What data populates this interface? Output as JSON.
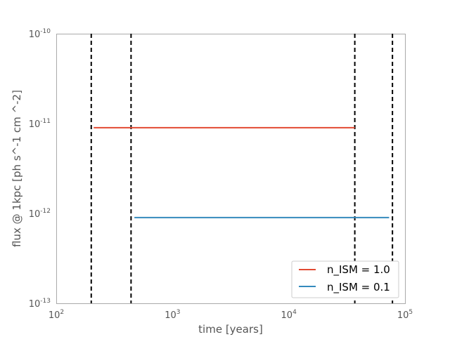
{
  "chart_data": {
    "type": "line",
    "title": "",
    "xlabel": "time [years]",
    "ylabel": "flux @ 1kpc [ph s^-1 cm ^-2]",
    "xscale": "log",
    "yscale": "log",
    "xlim": [
      100,
      100000
    ],
    "ylim": [
      1e-13,
      1e-10
    ],
    "grid": false,
    "legend": "lower-right",
    "x_ticks": [
      {
        "base": "10",
        "exp": "2",
        "value": 100
      },
      {
        "base": "10",
        "exp": "3",
        "value": 1000
      },
      {
        "base": "10",
        "exp": "4",
        "value": 10000
      },
      {
        "base": "10",
        "exp": "5",
        "value": 100000
      }
    ],
    "y_ticks": [
      {
        "base": "10",
        "exp": "-13",
        "value": 1e-13
      },
      {
        "base": "10",
        "exp": "-12",
        "value": 1e-12
      },
      {
        "base": "10",
        "exp": "-11",
        "value": 1e-11
      },
      {
        "base": "10",
        "exp": "-10",
        "value": 1e-10
      }
    ],
    "series": [
      {
        "name": "n_ISM = 1.0",
        "color": "#E24A33",
        "x": [
          210,
          37000
        ],
        "y": [
          9e-12,
          9e-12
        ]
      },
      {
        "name": "n_ISM = 0.1",
        "color": "#348ABD",
        "x": [
          470,
          73000
        ],
        "y": [
          9e-13,
          9e-13
        ]
      }
    ],
    "vlines": [
      200,
      440,
      37000,
      78000
    ]
  }
}
